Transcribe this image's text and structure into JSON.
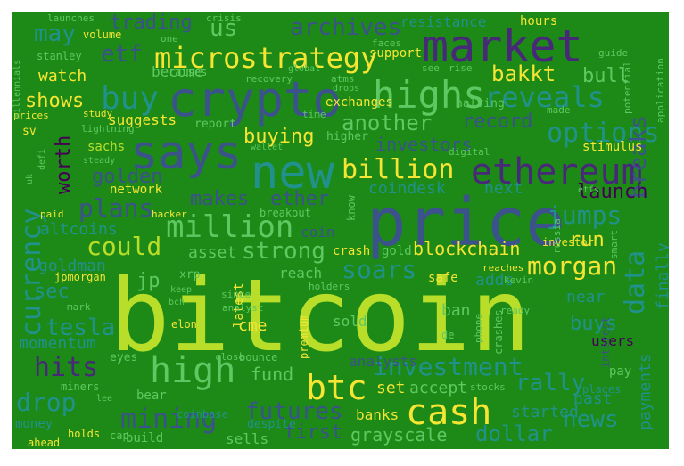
{
  "cloud": {
    "background": "#1d8a17",
    "palette": {
      "yellow": "#f7e534",
      "lime": "#b8de29",
      "green": "#5ec962",
      "teal": "#21918c",
      "blue": "#3b528b",
      "purple": "#482878",
      "dark": "#440154"
    },
    "words": [
      {
        "text": "bitcoin",
        "color": "lime"
      },
      {
        "text": "price",
        "color": "blue"
      },
      {
        "text": "crypto",
        "color": "blue"
      },
      {
        "text": "says",
        "color": "blue"
      },
      {
        "text": "market",
        "color": "purple"
      },
      {
        "text": "new",
        "color": "teal"
      },
      {
        "text": "ethereum",
        "color": "purple"
      },
      {
        "text": "highs",
        "color": "green"
      },
      {
        "text": "high",
        "color": "green"
      },
      {
        "text": "cash",
        "color": "yellow"
      },
      {
        "text": "btc",
        "color": "yellow"
      },
      {
        "text": "billion",
        "color": "yellow"
      },
      {
        "text": "buy",
        "color": "teal"
      },
      {
        "text": "microstrategy",
        "color": "yellow"
      },
      {
        "text": "million",
        "color": "green"
      },
      {
        "text": "mining",
        "color": "blue"
      },
      {
        "text": "investment",
        "color": "teal"
      },
      {
        "text": "currency",
        "color": "teal"
      },
      {
        "text": "reveals",
        "color": "teal"
      },
      {
        "text": "options",
        "color": "teal"
      },
      {
        "text": "could",
        "color": "lime"
      },
      {
        "text": "strong",
        "color": "green"
      },
      {
        "text": "plans",
        "color": "blue"
      },
      {
        "text": "jumps",
        "color": "teal"
      },
      {
        "text": "hits",
        "color": "purple"
      },
      {
        "text": "drop",
        "color": "teal"
      },
      {
        "text": "soars",
        "color": "teal"
      },
      {
        "text": "futures",
        "color": "blue"
      },
      {
        "text": "news",
        "color": "teal"
      },
      {
        "text": "rally",
        "color": "teal"
      },
      {
        "text": "data",
        "color": "teal"
      },
      {
        "text": "tesla",
        "color": "teal"
      },
      {
        "text": "dollar",
        "color": "teal"
      },
      {
        "text": "payments",
        "color": "teal"
      },
      {
        "text": "finally",
        "color": "teal"
      },
      {
        "text": "morgan",
        "color": "yellow"
      },
      {
        "text": "archives",
        "color": "blue"
      },
      {
        "text": "trading",
        "color": "blue"
      },
      {
        "text": "breaks",
        "color": "blue"
      },
      {
        "text": "another",
        "color": "green"
      },
      {
        "text": "bakkt",
        "color": "yellow"
      },
      {
        "text": "record",
        "color": "blue"
      },
      {
        "text": "bull",
        "color": "green"
      },
      {
        "text": "investors",
        "color": "blue"
      },
      {
        "text": "shows",
        "color": "yellow"
      },
      {
        "text": "buying",
        "color": "yellow"
      },
      {
        "text": "worth",
        "color": "dark"
      },
      {
        "text": "golden",
        "color": "blue"
      },
      {
        "text": "makes",
        "color": "blue"
      },
      {
        "text": "ether",
        "color": "blue"
      },
      {
        "text": "launch",
        "color": "dark"
      },
      {
        "text": "run",
        "color": "yellow"
      },
      {
        "text": "buys",
        "color": "teal"
      },
      {
        "text": "grayscale",
        "color": "green"
      },
      {
        "text": "first",
        "color": "blue"
      },
      {
        "text": "fund",
        "color": "green"
      },
      {
        "text": "sec",
        "color": "teal"
      },
      {
        "text": "blockchain",
        "color": "yellow"
      },
      {
        "text": "coindesk",
        "color": "teal"
      },
      {
        "text": "next",
        "color": "teal"
      },
      {
        "text": "watch",
        "color": "yellow"
      },
      {
        "text": "may",
        "color": "teal"
      },
      {
        "text": "us",
        "color": "green"
      },
      {
        "text": "etf",
        "color": "blue"
      },
      {
        "text": "momentum",
        "color": "teal"
      },
      {
        "text": "goldman",
        "color": "teal"
      },
      {
        "text": "altcoins",
        "color": "teal"
      },
      {
        "text": "asset",
        "color": "green"
      },
      {
        "text": "cme",
        "color": "yellow"
      },
      {
        "text": "set",
        "color": "yellow"
      },
      {
        "text": "accept",
        "color": "green"
      },
      {
        "text": "started",
        "color": "teal"
      },
      {
        "text": "analysts",
        "color": "blue"
      },
      {
        "text": "sells",
        "color": "green"
      },
      {
        "text": "banks",
        "color": "yellow"
      },
      {
        "text": "adds",
        "color": "teal"
      },
      {
        "text": "near",
        "color": "teal"
      },
      {
        "text": "users",
        "color": "dark"
      },
      {
        "text": "past",
        "color": "teal"
      },
      {
        "text": "pay",
        "color": "green"
      },
      {
        "text": "ban",
        "color": "green"
      },
      {
        "text": "sold",
        "color": "green"
      },
      {
        "text": "jp",
        "color": "green"
      },
      {
        "text": "coin",
        "color": "blue"
      },
      {
        "text": "latest",
        "color": "yellow"
      },
      {
        "text": "reach",
        "color": "green"
      },
      {
        "text": "safe",
        "color": "yellow"
      },
      {
        "text": "crash",
        "color": "yellow"
      },
      {
        "text": "gold",
        "color": "green"
      },
      {
        "text": "resistance",
        "color": "teal"
      },
      {
        "text": "hours",
        "color": "yellow"
      },
      {
        "text": "support",
        "color": "yellow"
      },
      {
        "text": "become",
        "color": "green"
      },
      {
        "text": "suggests",
        "color": "yellow"
      },
      {
        "text": "report",
        "color": "green"
      },
      {
        "text": "exchanges",
        "color": "yellow"
      },
      {
        "text": "halving",
        "color": "green"
      },
      {
        "text": "higher",
        "color": "green"
      },
      {
        "text": "stimulus",
        "color": "yellow"
      },
      {
        "text": "network",
        "color": "yellow"
      },
      {
        "text": "sachs",
        "color": "lime"
      },
      {
        "text": "volume",
        "color": "yellow"
      },
      {
        "text": "stanley",
        "color": "green"
      },
      {
        "text": "prices",
        "color": "yellow"
      },
      {
        "text": "sv",
        "color": "yellow"
      },
      {
        "text": "elon",
        "color": "yellow"
      },
      {
        "text": "jpmorgan",
        "color": "yellow"
      },
      {
        "text": "miners",
        "color": "green"
      },
      {
        "text": "money",
        "color": "teal"
      },
      {
        "text": "ahead",
        "color": "yellow"
      },
      {
        "text": "holds",
        "color": "yellow"
      },
      {
        "text": "despite",
        "color": "teal"
      },
      {
        "text": "coinbase",
        "color": "teal"
      },
      {
        "text": "cap",
        "color": "green"
      },
      {
        "text": "raises",
        "color": "green"
      },
      {
        "text": "bounce",
        "color": "green"
      },
      {
        "text": "close",
        "color": "green"
      },
      {
        "text": "premium",
        "color": "yellow"
      },
      {
        "text": "de",
        "color": "green"
      },
      {
        "text": "phone",
        "color": "green"
      },
      {
        "text": "crashes",
        "color": "green"
      },
      {
        "text": "investor",
        "color": "yellow"
      },
      {
        "text": "places",
        "color": "teal"
      },
      {
        "text": "interest",
        "color": "blue"
      },
      {
        "text": "reaches",
        "color": "yellow"
      },
      {
        "text": "breakout",
        "color": "green"
      },
      {
        "text": "hacker",
        "color": "yellow"
      },
      {
        "text": "paid",
        "color": "yellow"
      },
      {
        "text": "study",
        "color": "yellow"
      },
      {
        "text": "guide",
        "color": "green"
      },
      {
        "text": "see",
        "color": "green"
      },
      {
        "text": "rise",
        "color": "green"
      },
      {
        "text": "atms",
        "color": "green"
      },
      {
        "text": "drops",
        "color": "green"
      },
      {
        "text": "recovery",
        "color": "green"
      },
      {
        "text": "faces",
        "color": "green"
      },
      {
        "text": "digital",
        "color": "green"
      },
      {
        "text": "holders",
        "color": "green"
      },
      {
        "text": "since",
        "color": "green"
      },
      {
        "text": "know",
        "color": "green"
      },
      {
        "text": "launches",
        "color": "green"
      },
      {
        "text": "crisis",
        "color": "green"
      },
      {
        "text": "one",
        "color": "green"
      },
      {
        "text": "lightning",
        "color": "green"
      },
      {
        "text": "millennials",
        "color": "green"
      },
      {
        "text": "potential",
        "color": "green"
      },
      {
        "text": "application",
        "color": "green"
      },
      {
        "text": "made",
        "color": "green"
      },
      {
        "text": "smart",
        "color": "green"
      },
      {
        "text": "russia",
        "color": "green"
      },
      {
        "text": "ready",
        "color": "green"
      },
      {
        "text": "etfs",
        "color": "green"
      },
      {
        "text": "kevin",
        "color": "green"
      },
      {
        "text": "keep",
        "color": "green"
      },
      {
        "text": "analyst",
        "color": "green"
      },
      {
        "text": "bch",
        "color": "green"
      },
      {
        "text": "mark",
        "color": "green"
      },
      {
        "text": "time",
        "color": "green"
      },
      {
        "text": "stocks",
        "color": "green"
      },
      {
        "text": "lee",
        "color": "green"
      },
      {
        "text": "defi",
        "color": "green"
      },
      {
        "text": "uk",
        "color": "green"
      },
      {
        "text": "wallet",
        "color": "green"
      },
      {
        "text": "steady",
        "color": "green"
      },
      {
        "text": "global",
        "color": "green"
      },
      {
        "text": "xrp",
        "color": "green"
      },
      {
        "text": "eyes",
        "color": "green"
      },
      {
        "text": "bear",
        "color": "green"
      },
      {
        "text": "build",
        "color": "green"
      }
    ]
  }
}
